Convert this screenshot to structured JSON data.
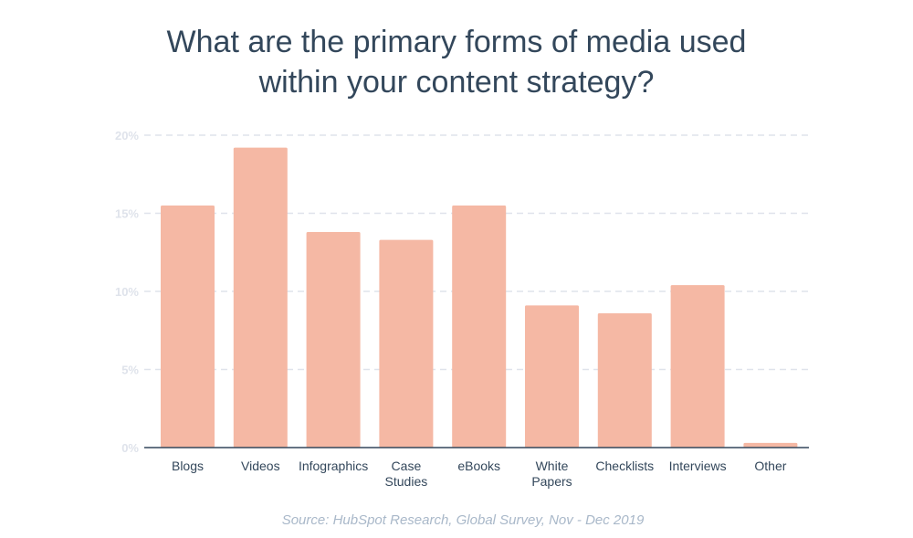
{
  "title": {
    "line1": "What are the primary forms of media used",
    "line2": "within your content strategy?"
  },
  "source": "Source: HubSpot Research, Global Survey, Nov - Dec 2019",
  "colors": {
    "bar": "#f5b8a4",
    "grid": "#dfe3eb",
    "axis": "#33475b",
    "title": "#33475b",
    "source": "#a9b8c9"
  },
  "chart_data": {
    "type": "bar",
    "title": "What are the primary forms of media used within your content strategy?",
    "xlabel": "",
    "ylabel": "",
    "categories": [
      [
        "Blogs"
      ],
      [
        "Videos"
      ],
      [
        "Infographics"
      ],
      [
        "Case",
        "Studies"
      ],
      [
        "eBooks"
      ],
      [
        "White",
        "Papers"
      ],
      [
        "Checklists"
      ],
      [
        "Interviews"
      ],
      [
        "Other"
      ]
    ],
    "values": [
      15.5,
      19.2,
      13.8,
      13.3,
      15.5,
      9.1,
      8.6,
      10.4,
      0.3
    ],
    "ylim": [
      0,
      20
    ],
    "yticks": [
      0,
      5,
      10,
      15,
      20
    ],
    "ytick_labels": [
      "0%",
      "5%",
      "10%",
      "15%",
      "20%"
    ],
    "grid": true,
    "legend": "none"
  }
}
